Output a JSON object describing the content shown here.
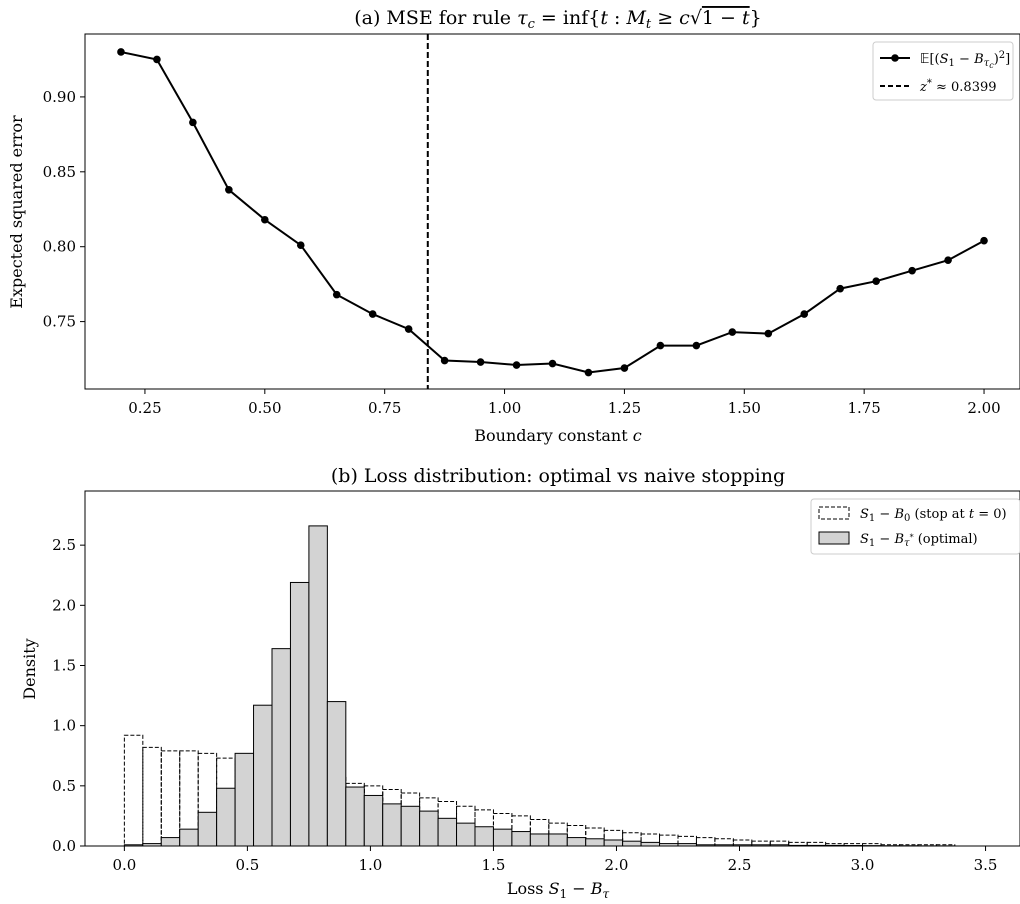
{
  "chart_data": [
    {
      "type": "line",
      "title": "(a) MSE for rule τ_c = inf{t : M_t ≥ c√(1−t)}",
      "xlabel": "Boundary constant c",
      "ylabel": "Expected squared error",
      "xlim": [
        0.125,
        2.075
      ],
      "ylim": [
        0.705,
        0.942
      ],
      "xticks": [
        "0.25",
        "0.50",
        "0.75",
        "1.00",
        "1.25",
        "1.50",
        "1.75",
        "2.00"
      ],
      "yticks": [
        "0.75",
        "0.80",
        "0.85",
        "0.90"
      ],
      "grid": false,
      "legend_position": "top-right",
      "series": [
        {
          "name": "𝔼[(S₁ − B_τc)²]",
          "x": [
            0.2,
            0.275,
            0.35,
            0.425,
            0.5,
            0.575,
            0.65,
            0.725,
            0.8,
            0.875,
            0.95,
            1.025,
            1.1,
            1.175,
            1.25,
            1.325,
            1.4,
            1.475,
            1.55,
            1.625,
            1.7,
            1.775,
            1.85,
            1.925,
            2.0
          ],
          "y": [
            0.93,
            0.925,
            0.883,
            0.838,
            0.818,
            0.801,
            0.768,
            0.755,
            0.745,
            0.724,
            0.723,
            0.721,
            0.722,
            0.716,
            0.719,
            0.734,
            0.734,
            0.743,
            0.742,
            0.755,
            0.772,
            0.777,
            0.784,
            0.791,
            0.804
          ]
        }
      ],
      "vline": {
        "name": "z* ≈ 0.8399",
        "x": 0.8399
      }
    },
    {
      "type": "histogram",
      "title": "(b) Loss distribution: optimal vs naive stopping",
      "xlabel": "Loss S₁ − B_τ",
      "ylabel": "Density",
      "xlim": [
        -0.16,
        3.64
      ],
      "ylim": [
        0,
        2.95
      ],
      "xticks": [
        "0.0",
        "0.5",
        "1.0",
        "1.5",
        "2.0",
        "2.5",
        "3.0",
        "3.5"
      ],
      "yticks": [
        "0.0",
        "0.5",
        "1.0",
        "1.5",
        "2.0",
        "2.5"
      ],
      "grid": false,
      "legend_position": "top-right",
      "bin_width": 0.075,
      "bin_start": 0.0,
      "series": [
        {
          "name": "S₁ − B₀ (stop at t = 0)",
          "values": [
            0.92,
            0.82,
            0.79,
            0.79,
            0.77,
            0.73,
            0.72,
            0.71,
            0.68,
            0.65,
            0.61,
            0.57,
            0.52,
            0.5,
            0.47,
            0.44,
            0.4,
            0.37,
            0.33,
            0.3,
            0.27,
            0.25,
            0.22,
            0.19,
            0.17,
            0.15,
            0.13,
            0.11,
            0.1,
            0.09,
            0.08,
            0.07,
            0.06,
            0.05,
            0.04,
            0.04,
            0.03,
            0.03,
            0.02,
            0.02,
            0.02,
            0.01,
            0.01,
            0.01,
            0.01
          ]
        },
        {
          "name": "S₁ − B_τ* (optimal)",
          "values": [
            0.01,
            0.02,
            0.07,
            0.14,
            0.28,
            0.48,
            0.77,
            1.17,
            1.64,
            2.19,
            2.66,
            1.2,
            0.49,
            0.42,
            0.35,
            0.33,
            0.29,
            0.23,
            0.19,
            0.16,
            0.14,
            0.12,
            0.1,
            0.1,
            0.07,
            0.06,
            0.05,
            0.04,
            0.03,
            0.02,
            0.02,
            0.01,
            0.01,
            0.01,
            0.01,
            0.01,
            0.005,
            0.005,
            0.005,
            0.004,
            0.003,
            0.002,
            0.002,
            0.001,
            0.001
          ]
        }
      ]
    }
  ]
}
